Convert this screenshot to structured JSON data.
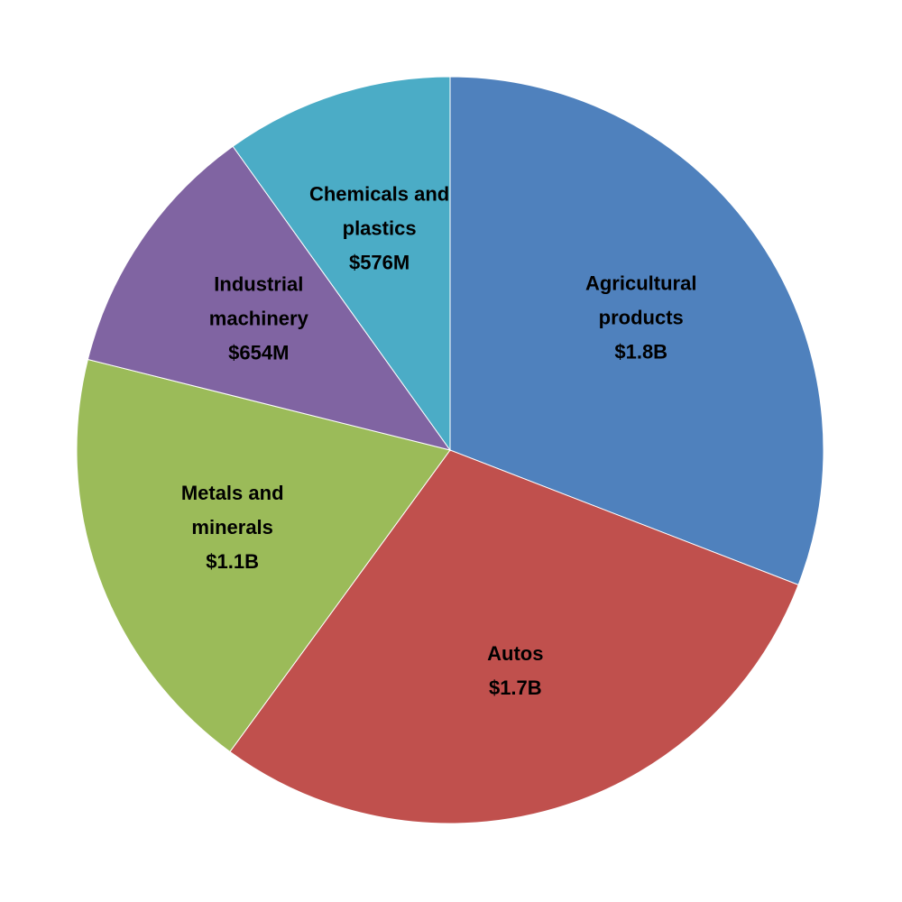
{
  "chart_data": {
    "type": "pie",
    "title": "",
    "start_angle_deg": 0,
    "direction": "clockwise",
    "slices": [
      {
        "label_lines": [
          "Agricultural",
          "products"
        ],
        "value_label": "$1.8B",
        "value": 1.8,
        "color": "#4F81BD"
      },
      {
        "label_lines": [
          "Autos"
        ],
        "value_label": "$1.7B",
        "value": 1.7,
        "color": "#C0504D"
      },
      {
        "label_lines": [
          "Metals and",
          "minerals"
        ],
        "value_label": "$1.1B",
        "value": 1.1,
        "color": "#9BBB59"
      },
      {
        "label_lines": [
          "Industrial",
          "machinery"
        ],
        "value_label": "$654M",
        "value": 0.654,
        "color": "#8064A2"
      },
      {
        "label_lines": [
          "Chemicals and",
          "plastics"
        ],
        "value_label": "$576M",
        "value": 0.576,
        "color": "#4BACC6"
      }
    ]
  }
}
